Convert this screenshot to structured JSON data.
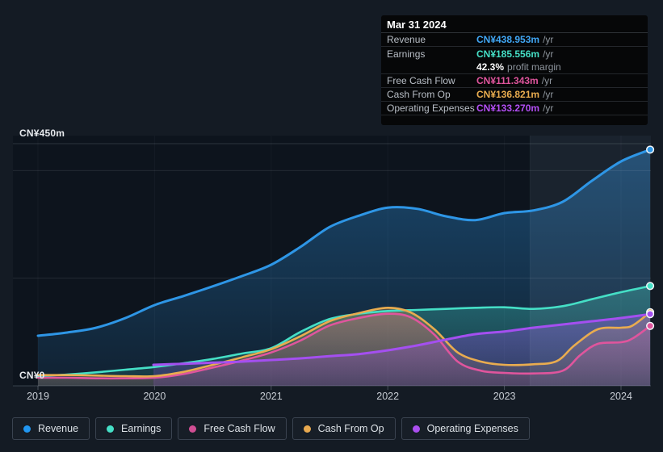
{
  "y_axis": {
    "top_label": "CN¥450m",
    "zero_label": "CN¥0"
  },
  "tooltip": {
    "date": "Mar 31 2024",
    "rows": [
      {
        "label": "Revenue",
        "value": "CN¥438.953m",
        "suffix": "/yr",
        "series": "Revenue"
      },
      {
        "label": "Earnings",
        "value": "CN¥185.556m",
        "suffix": "/yr",
        "series": "Earnings"
      },
      {
        "label": "",
        "value": "42.3%",
        "suffix": "profit margin",
        "series": "margin"
      },
      {
        "label": "Free Cash Flow",
        "value": "CN¥111.343m",
        "suffix": "/yr",
        "series": "Free Cash Flow"
      },
      {
        "label": "Cash From Op",
        "value": "CN¥136.821m",
        "suffix": "/yr",
        "series": "Cash From Op"
      },
      {
        "label": "Operating Expenses",
        "value": "CN¥133.270m",
        "suffix": "/yr",
        "series": "Operating Expenses"
      }
    ]
  },
  "legend": {
    "items": [
      {
        "label": "Revenue",
        "color": "#2196f0"
      },
      {
        "label": "Earnings",
        "color": "#45dfc6"
      },
      {
        "label": "Free Cash Flow",
        "color": "#d04e93"
      },
      {
        "label": "Cash From Op",
        "color": "#e8a94f"
      },
      {
        "label": "Operating Expenses",
        "color": "#ab4ff0"
      }
    ]
  },
  "chart_data": {
    "type": "area",
    "title": "Financial history: revenue, earnings, cash flow and expenses over time",
    "x_ticks": [
      "2019",
      "2020",
      "2021",
      "2022",
      "2023",
      "2024"
    ],
    "x_range": [
      2019,
      2024.25
    ],
    "ylim": [
      0,
      450
    ],
    "y_unit": "CN¥m",
    "y_gridline_values": [
      450,
      400,
      200
    ],
    "grid": true,
    "legend_position": "bottom",
    "highlight_band": {
      "start_year": 2023.22,
      "end_year": 2024.25
    },
    "series": [
      {
        "name": "Revenue",
        "color": "#2e96e6",
        "points": [
          [
            2019,
            93
          ],
          [
            2019.25,
            99
          ],
          [
            2019.5,
            108
          ],
          [
            2019.75,
            126
          ],
          [
            2020,
            150
          ],
          [
            2020.25,
            167
          ],
          [
            2020.5,
            185
          ],
          [
            2020.75,
            204
          ],
          [
            2021,
            225
          ],
          [
            2021.25,
            258
          ],
          [
            2021.5,
            295
          ],
          [
            2021.75,
            316
          ],
          [
            2022,
            331
          ],
          [
            2022.25,
            329
          ],
          [
            2022.5,
            315
          ],
          [
            2022.75,
            308
          ],
          [
            2023,
            321
          ],
          [
            2023.25,
            326
          ],
          [
            2023.5,
            342
          ],
          [
            2023.75,
            381
          ],
          [
            2024,
            417
          ],
          [
            2024.25,
            438.953
          ]
        ]
      },
      {
        "name": "Earnings",
        "color": "#45dfc6",
        "points": [
          [
            2019,
            18
          ],
          [
            2019.25,
            21
          ],
          [
            2019.5,
            25
          ],
          [
            2019.75,
            30
          ],
          [
            2020,
            35
          ],
          [
            2020.25,
            42
          ],
          [
            2020.5,
            50
          ],
          [
            2020.75,
            60
          ],
          [
            2021,
            70
          ],
          [
            2021.25,
            100
          ],
          [
            2021.5,
            124
          ],
          [
            2021.75,
            134
          ],
          [
            2022,
            139
          ],
          [
            2022.25,
            141
          ],
          [
            2022.5,
            143
          ],
          [
            2022.75,
            145
          ],
          [
            2023,
            146
          ],
          [
            2023.25,
            143
          ],
          [
            2023.5,
            148
          ],
          [
            2023.75,
            161
          ],
          [
            2024,
            174
          ],
          [
            2024.25,
            185.556
          ]
        ]
      },
      {
        "name": "Free Cash Flow",
        "color": "#e0559d",
        "points": [
          [
            2019,
            15
          ],
          [
            2019.25,
            15
          ],
          [
            2019.5,
            14
          ],
          [
            2019.75,
            14
          ],
          [
            2020,
            15
          ],
          [
            2020.25,
            22
          ],
          [
            2020.5,
            34
          ],
          [
            2020.75,
            47
          ],
          [
            2021,
            62
          ],
          [
            2021.25,
            84
          ],
          [
            2021.5,
            112
          ],
          [
            2021.75,
            126
          ],
          [
            2022,
            134
          ],
          [
            2022.2,
            127
          ],
          [
            2022.4,
            95
          ],
          [
            2022.6,
            45
          ],
          [
            2022.8,
            28
          ],
          [
            2023,
            24
          ],
          [
            2023.25,
            23
          ],
          [
            2023.5,
            28
          ],
          [
            2023.65,
            57
          ],
          [
            2023.8,
            78
          ],
          [
            2024,
            81
          ],
          [
            2024.1,
            88
          ],
          [
            2024.25,
            111.343
          ]
        ]
      },
      {
        "name": "Cash From Op",
        "color": "#e9ac4f",
        "points": [
          [
            2019,
            20
          ],
          [
            2019.25,
            20
          ],
          [
            2019.5,
            19
          ],
          [
            2019.75,
            18
          ],
          [
            2020,
            18
          ],
          [
            2020.25,
            26
          ],
          [
            2020.5,
            39
          ],
          [
            2020.75,
            53
          ],
          [
            2021,
            68
          ],
          [
            2021.25,
            92
          ],
          [
            2021.5,
            120
          ],
          [
            2021.75,
            135
          ],
          [
            2022,
            145
          ],
          [
            2022.2,
            136
          ],
          [
            2022.4,
            105
          ],
          [
            2022.6,
            62
          ],
          [
            2022.8,
            45
          ],
          [
            2023,
            39
          ],
          [
            2023.25,
            40
          ],
          [
            2023.45,
            46
          ],
          [
            2023.6,
            75
          ],
          [
            2023.8,
            105
          ],
          [
            2024,
            108
          ],
          [
            2024.1,
            112
          ],
          [
            2024.25,
            136.821
          ]
        ]
      },
      {
        "name": "Operating Expenses",
        "color": "#a44ff0",
        "points": [
          [
            2019.99,
            39
          ],
          [
            2020.25,
            41
          ],
          [
            2020.5,
            43
          ],
          [
            2020.75,
            45
          ],
          [
            2021,
            48
          ],
          [
            2021.25,
            51
          ],
          [
            2021.5,
            55
          ],
          [
            2021.75,
            59
          ],
          [
            2022,
            66
          ],
          [
            2022.25,
            75
          ],
          [
            2022.5,
            86
          ],
          [
            2022.75,
            96
          ],
          [
            2023,
            101
          ],
          [
            2023.25,
            108
          ],
          [
            2023.5,
            114
          ],
          [
            2023.75,
            120
          ],
          [
            2024,
            126
          ],
          [
            2024.25,
            133.27
          ]
        ]
      }
    ]
  }
}
